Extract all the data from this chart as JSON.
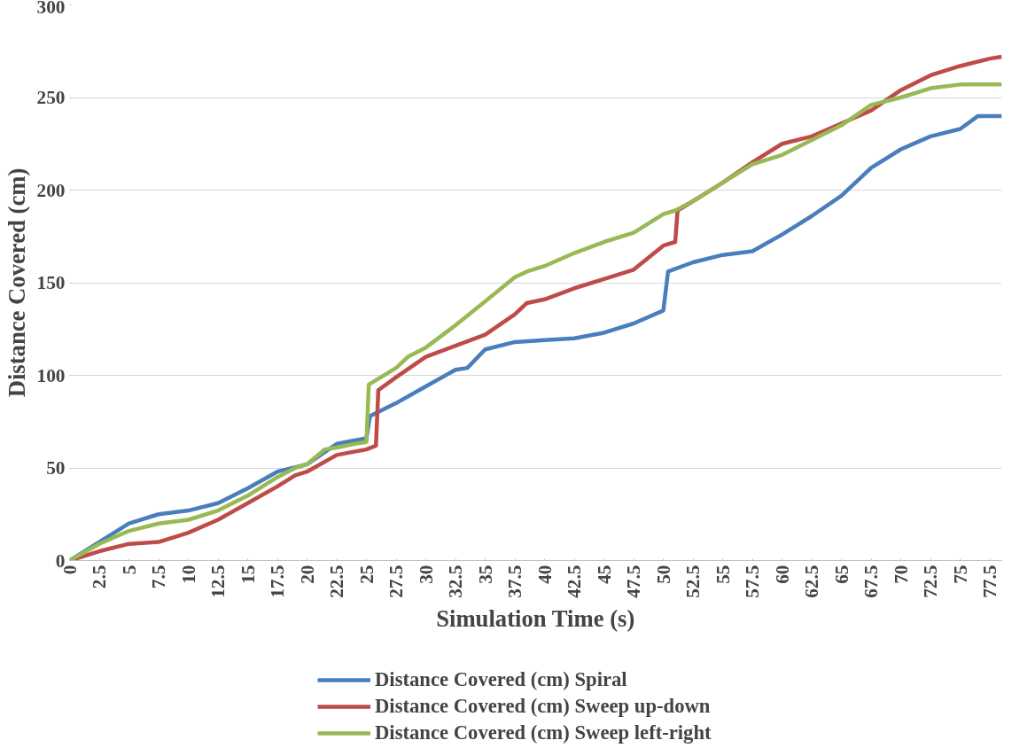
{
  "chart_data": {
    "type": "line",
    "xlabel": "Simulation Time (s)",
    "ylabel": "Distance Covered (cm)",
    "xlim": [
      0,
      78.5
    ],
    "xticks": [
      0,
      2.5,
      5,
      7.5,
      10,
      12.5,
      15,
      17.5,
      20,
      22.5,
      25,
      27.5,
      30,
      32.5,
      35,
      37.5,
      40,
      42.5,
      45,
      47.5,
      50,
      52.5,
      55,
      57.5,
      60,
      62.5,
      65,
      67.5,
      70,
      72.5,
      75,
      77.5
    ],
    "ylim": [
      0,
      300
    ],
    "yticks": [
      0,
      50,
      100,
      150,
      200,
      250,
      300
    ],
    "grid": "y",
    "legend": "bottom",
    "line_style": "solid",
    "marker": "none",
    "series": [
      {
        "name": "Distance Covered (cm) Spiral",
        "color": "#4a7ebb",
        "x": [
          0,
          2.5,
          5,
          7.5,
          10,
          12.5,
          15,
          17.5,
          20,
          22.5,
          25,
          25.3,
          27.5,
          30,
          32.5,
          33.5,
          35,
          37.5,
          40,
          42.5,
          45,
          47.5,
          50,
          50.4,
          52.5,
          55,
          57.5,
          60,
          62.5,
          65,
          67.5,
          70,
          72.5,
          75,
          76.5,
          78.5
        ],
        "values": [
          0,
          10,
          20,
          25,
          27,
          31,
          39,
          48,
          52,
          63,
          66,
          78,
          85,
          94,
          103,
          104,
          114,
          118,
          119,
          120,
          123,
          128,
          135,
          156,
          161,
          165,
          167,
          176,
          186,
          197,
          212,
          222,
          229,
          233,
          240,
          240
        ]
      },
      {
        "name": "Distance Covered (cm) Sweep up-down",
        "color": "#be4b48",
        "x": [
          0,
          2.5,
          5,
          7.5,
          10,
          12.5,
          15,
          17.5,
          19,
          20,
          22.5,
          25,
          25.8,
          26,
          27.5,
          30,
          32.5,
          35,
          37.5,
          38.5,
          40,
          42.5,
          45,
          47.5,
          50,
          51,
          51.2,
          52.5,
          55,
          57.5,
          60,
          62.5,
          65,
          67.5,
          70,
          72.5,
          75,
          77.5,
          78.5
        ],
        "values": [
          0,
          5,
          9,
          10,
          15,
          22,
          31,
          40,
          46,
          48,
          57,
          60,
          62,
          92,
          99,
          110,
          116,
          122,
          133,
          139,
          141,
          147,
          152,
          157,
          170,
          172,
          189,
          194,
          204,
          215,
          225,
          229,
          236,
          243,
          254,
          262,
          267,
          271,
          272
        ]
      },
      {
        "name": "Distance Covered (cm) Sweep left-right",
        "color": "#98b954",
        "x": [
          0,
          2.5,
          5,
          7.5,
          10,
          12.5,
          15,
          17.5,
          19,
          20,
          21.5,
          22.5,
          24,
          25,
          25.2,
          27.5,
          28.5,
          30,
          32.5,
          35,
          37.5,
          38.5,
          40,
          42.5,
          45,
          47.5,
          50,
          51,
          52.5,
          55,
          57.5,
          60,
          62.5,
          65,
          67.5,
          70,
          72.5,
          75,
          78.5
        ],
        "values": [
          0,
          9,
          16,
          20,
          22,
          27,
          35,
          45,
          50,
          52,
          60,
          61,
          63,
          64,
          95,
          104,
          110,
          115,
          127,
          140,
          153,
          156,
          159,
          166,
          172,
          177,
          187,
          189,
          194,
          204,
          214,
          219,
          227,
          235,
          246,
          250,
          255,
          257,
          257
        ]
      }
    ]
  }
}
